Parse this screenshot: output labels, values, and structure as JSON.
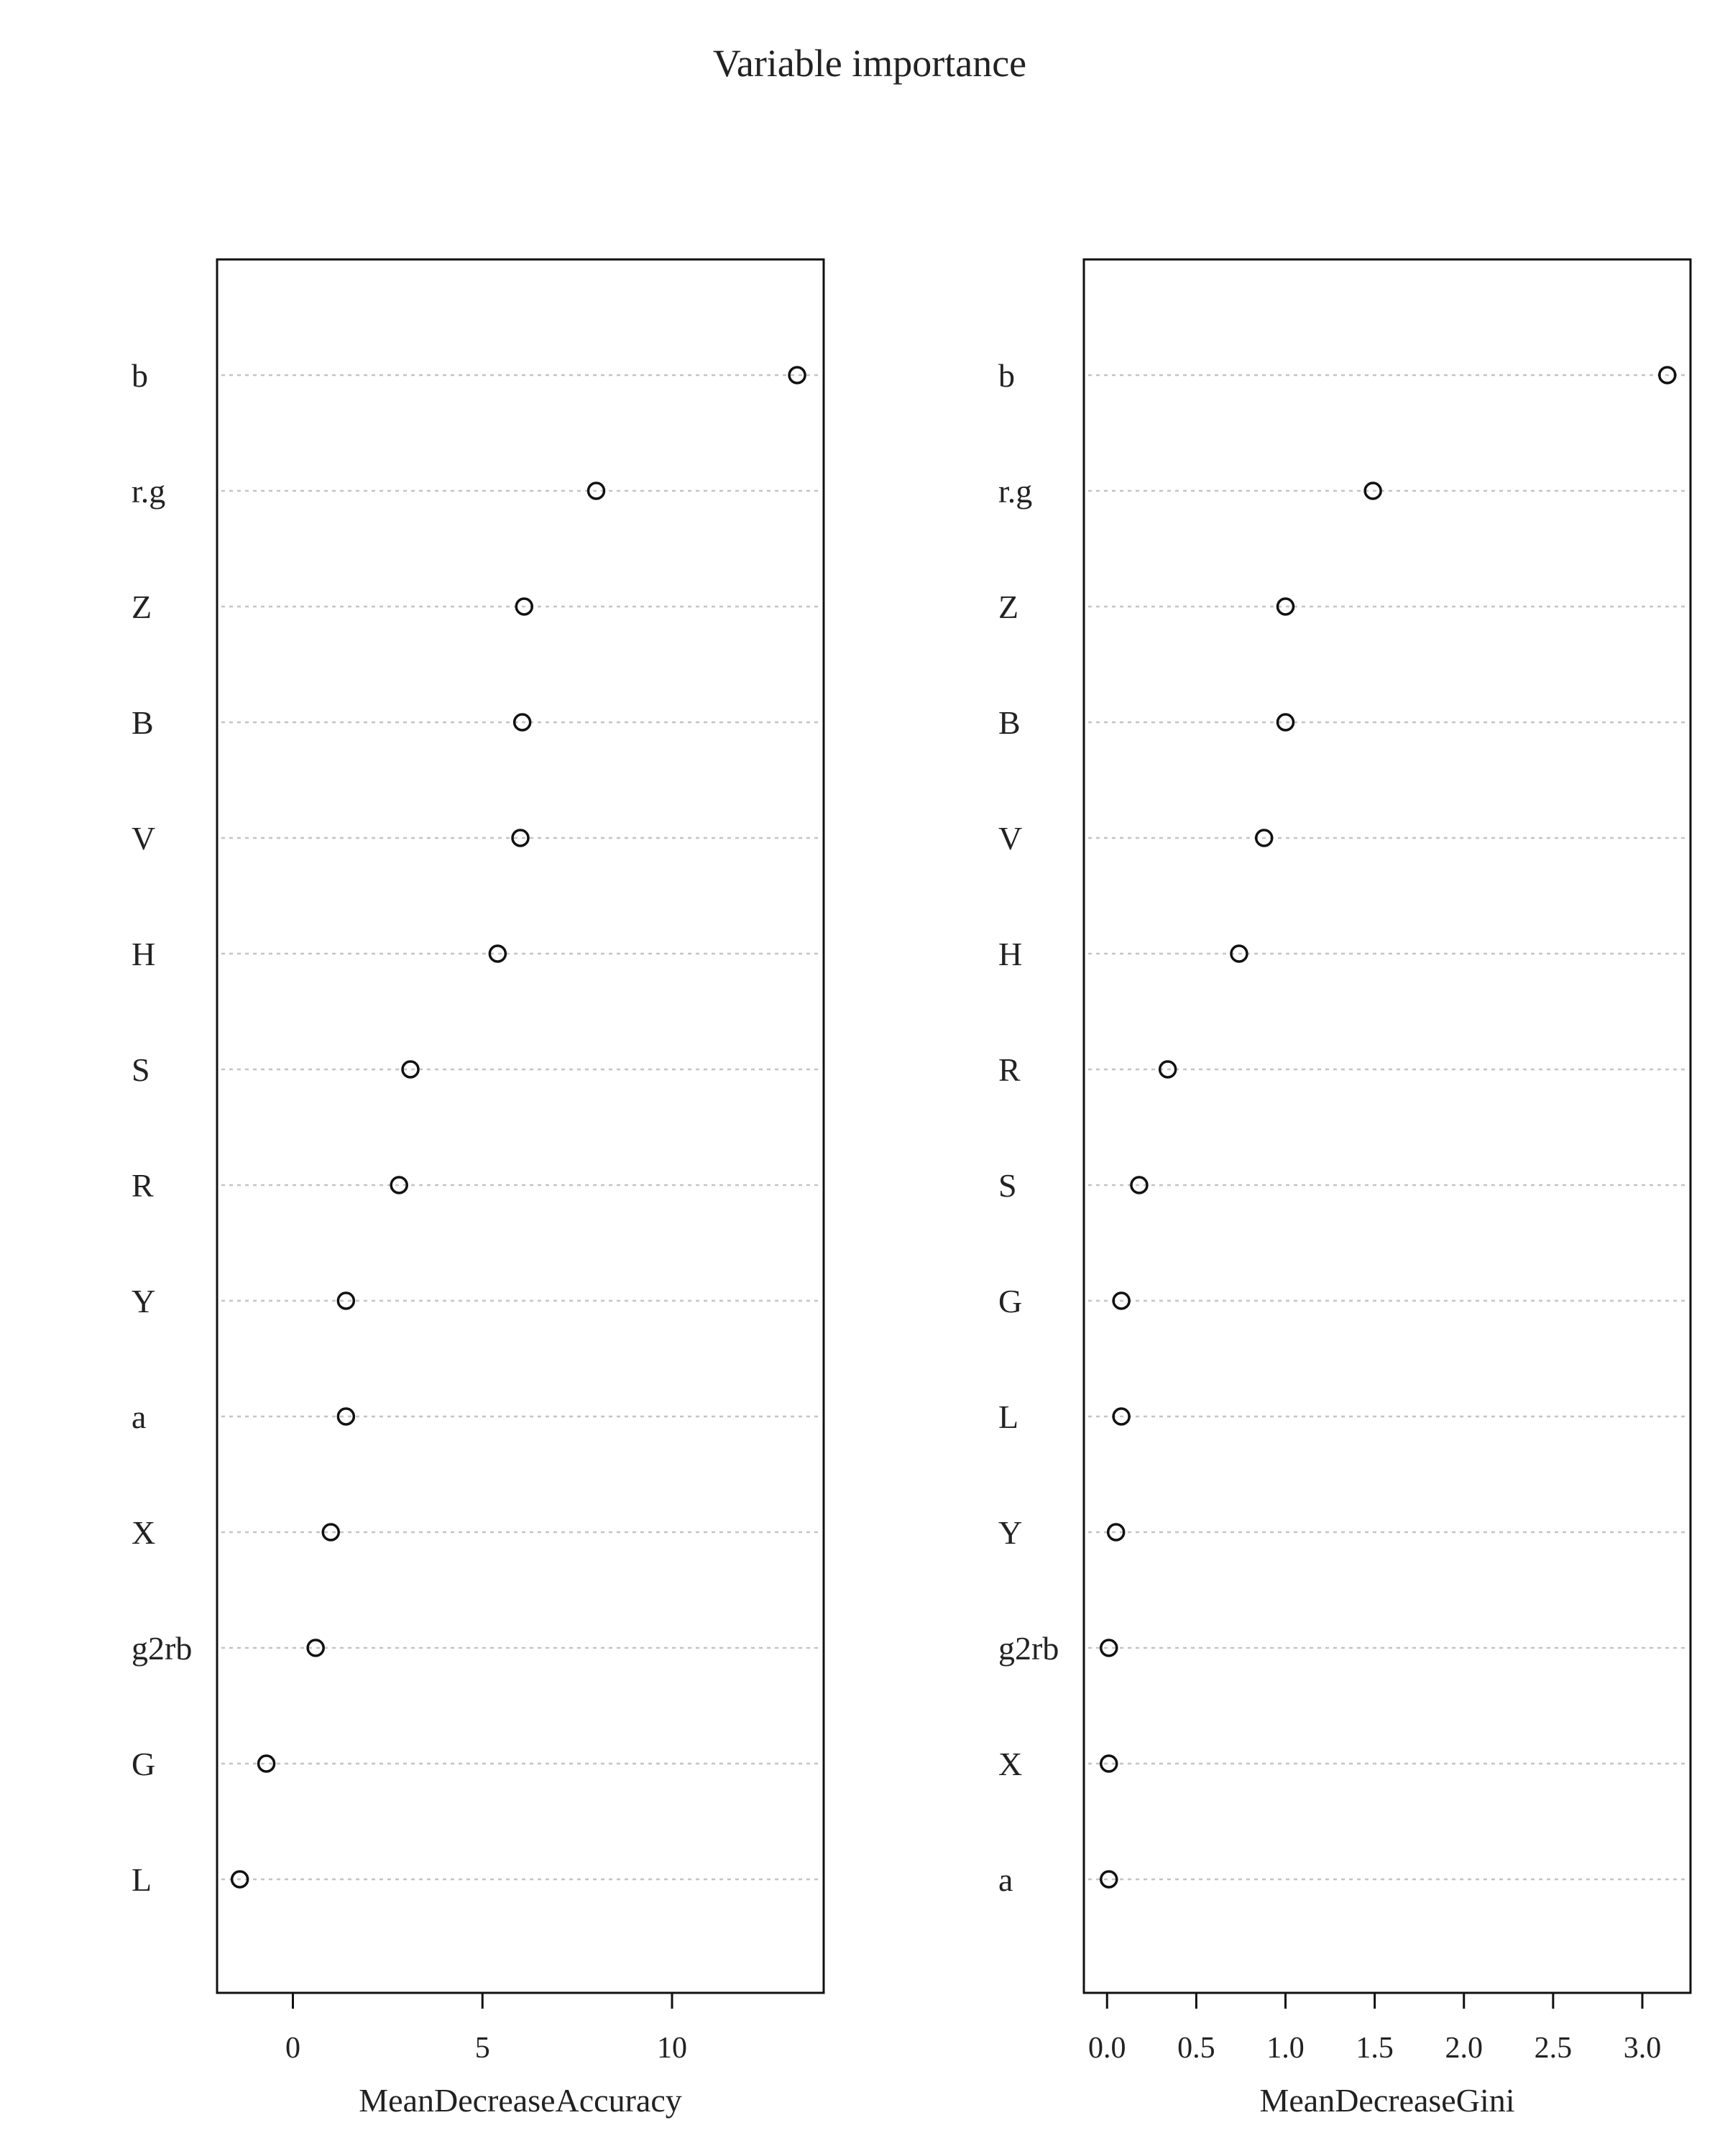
{
  "chart_data": {
    "type": "scatter",
    "title": "Variable importance",
    "panels": [
      {
        "xlabel": "MeanDecreaseAccuracy",
        "xlim": [
          -2.0,
          14.0
        ],
        "xticks": [
          0,
          5,
          10
        ],
        "xtick_labels": [
          "0",
          "5",
          "10"
        ],
        "categories": [
          "b",
          "r.g",
          "Z",
          "B",
          "V",
          "H",
          "S",
          "R",
          "Y",
          "a",
          "X",
          "g2rb",
          "G",
          "L"
        ],
        "values": [
          13.3,
          8.0,
          6.1,
          6.05,
          6.0,
          5.4,
          3.1,
          2.8,
          1.4,
          1.4,
          1.0,
          0.6,
          -0.7,
          -1.4
        ]
      },
      {
        "xlabel": "MeanDecreaseGini",
        "xlim": [
          -0.13,
          3.27
        ],
        "xticks": [
          0.0,
          0.5,
          1.0,
          1.5,
          2.0,
          2.5,
          3.0
        ],
        "xtick_labels": [
          "0.0",
          "0.5",
          "1.0",
          "1.5",
          "2.0",
          "2.5",
          "3.0"
        ],
        "categories": [
          "b",
          "r.g",
          "Z",
          "B",
          "V",
          "H",
          "R",
          "S",
          "G",
          "L",
          "Y",
          "g2rb",
          "X",
          "a"
        ],
        "values": [
          3.14,
          1.49,
          1.0,
          1.0,
          0.88,
          0.74,
          0.34,
          0.18,
          0.08,
          0.08,
          0.05,
          0.01,
          0.01,
          0.01
        ]
      }
    ],
    "point_marker": "open-circle",
    "guide_lines": "dotted",
    "grid": false,
    "legend": "none"
  }
}
